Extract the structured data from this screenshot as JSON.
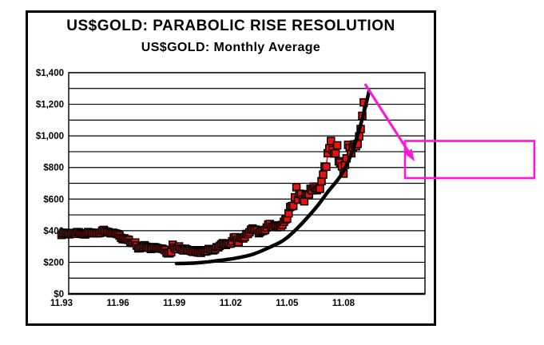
{
  "figure": {
    "title": "US$GOLD: PARABOLIC RISE RESOLUTION",
    "subtitle": "US$GOLD: Monthly Average"
  },
  "colors": {
    "background": "#FFFFFF",
    "frame_border": "#000000",
    "axis": "#000000",
    "gridline": "#000000",
    "marker_fill": "#EE1010",
    "marker_stroke": "#000000",
    "series_line": "#DD0000",
    "parabola": "#000000",
    "annotation_magenta": "#FB19D7"
  },
  "chart_data": {
    "type": "line",
    "title": "US$GOLD: PARABOLIC RISE RESOLUTION",
    "subtitle": "US$GOLD: Monthly Average",
    "xlabel": "",
    "ylabel": "",
    "grid": "horizontal, every $100",
    "legend": "none",
    "ylim": [
      0,
      1400
    ],
    "grid_step": 100,
    "y_ticks": [
      0,
      200,
      400,
      600,
      800,
      1000,
      1200,
      1400
    ],
    "y_tick_labels": [
      "$0",
      "$200",
      "$400",
      "$600",
      "$800",
      "$1,000",
      "$1,200",
      "$1,400"
    ],
    "x_tick_labels": [
      "11.93",
      "11.96",
      "11.99",
      "11.02",
      "11.05",
      "11.08"
    ],
    "x_tick_years": [
      1993.8333,
      1996.8333,
      1999.8333,
      2002.8333,
      2005.8333,
      2008.8333
    ],
    "series": [
      {
        "name": "US$ gold monthly average price",
        "marker": "square",
        "start_year": 1993,
        "start_month": 11,
        "values": [
          373,
          383,
          387,
          382,
          384,
          377,
          381,
          386,
          385,
          380,
          391,
          390,
          384,
          379,
          378,
          376,
          382,
          391,
          385,
          388,
          386,
          384,
          383,
          383,
          385,
          387,
          400,
          405,
          396,
          393,
          391,
          385,
          383,
          387,
          383,
          381,
          378,
          369,
          355,
          346,
          352,
          344,
          344,
          341,
          324,
          324,
          322,
          325,
          306,
          288,
          289,
          297,
          296,
          308,
          299,
          292,
          293,
          284,
          289,
          296,
          294,
          291,
          287,
          287,
          286,
          283,
          277,
          261,
          256,
          257,
          264,
          311,
          293,
          283,
          284,
          300,
          286,
          280,
          275,
          286,
          281,
          274,
          274,
          270,
          266,
          272,
          266,
          262,
          263,
          260,
          272,
          270,
          268,
          272,
          284,
          283,
          276,
          276,
          282,
          295,
          294,
          303,
          314,
          321,
          313,
          310,
          319,
          317,
          319,
          333,
          357,
          359,
          340,
          328,
          355,
          356,
          351,
          360,
          379,
          379,
          390,
          407,
          414,
          405,
          407,
          403,
          384,
          392,
          398,
          400,
          405,
          420,
          439,
          442,
          424,
          423,
          434,
          429,
          422,
          431,
          424,
          437,
          456,
          470,
          476,
          510,
          550,
          555,
          557,
          611,
          675,
          596,
          634,
          632,
          598,
          586,
          628,
          630,
          631,
          665,
          655,
          679,
          667,
          656,
          665,
          665,
          713,
          755,
          806,
          804,
          890,
          922,
          968,
          910,
          889,
          889,
          940,
          839,
          830,
          807,
          761,
          816,
          858,
          943,
          924,
          890,
          929,
          946,
          934,
          949,
          997,
          1043,
          1127,
          1212
        ]
      }
    ],
    "overlays": [
      {
        "name": "parabolic rise support curve",
        "style": "thick black smooth curve",
        "points": [
          [
            1999.95,
            192
          ],
          [
            2001.0,
            196
          ],
          [
            2002.0,
            208
          ],
          [
            2003.0,
            224
          ],
          [
            2004.0,
            250
          ],
          [
            2005.0,
            300
          ],
          [
            2005.7,
            344
          ],
          [
            2006.5,
            430
          ],
          [
            2007.4,
            550
          ],
          [
            2008.0,
            645
          ],
          [
            2008.7,
            750
          ],
          [
            2009.2,
            870
          ],
          [
            2009.6,
            1010
          ],
          [
            2009.95,
            1160
          ],
          [
            2010.2,
            1285
          ]
        ]
      }
    ],
    "annotations": {
      "decline_arrow": {
        "from": [
          2009.98,
          1329
        ],
        "to": [
          2012.62,
          839
        ]
      },
      "callout_box": {
        "text": "",
        "t1": 2012.11,
        "t2": 2018.99,
        "v_top": 968,
        "v_bottom": 733
      }
    }
  }
}
